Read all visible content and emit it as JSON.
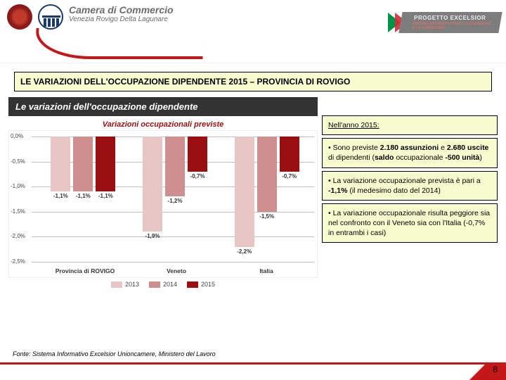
{
  "header": {
    "org_line1": "Camera di Commercio",
    "org_line2": "Venezia Rovigo Delta Lagunare",
    "exc_title": "PROGETTO EXCELSIOR",
    "exc_sub": "SISTEMA INFORMATIVO PER L'OCCUPAZIONE E LA FORMAZIONE"
  },
  "title": "LE VARIAZIONI DELL'OCCUPAZIONE DIPENDENTE 2015 – PROVINCIA DI ROVIGO",
  "chart": {
    "type": "bar",
    "bar_title": "Le variazioni dell'occupazione dipendente",
    "sub_title": "Variazioni occupazionali previste",
    "categories": [
      "Provincia di ROVIGO",
      "Veneto",
      "Italia"
    ],
    "series": [
      {
        "name": "2013",
        "color": "#e9c6c6"
      },
      {
        "name": "2014",
        "color": "#cf8f8f"
      },
      {
        "name": "2015",
        "color": "#9a1010"
      }
    ],
    "values": [
      [
        -1.1,
        -1.1,
        -1.1
      ],
      [
        -1.9,
        -1.2,
        -0.7
      ],
      [
        -2.2,
        -1.5,
        -0.7
      ]
    ],
    "value_labels": [
      [
        "-1,1%",
        "-1,1%",
        "-1,1%"
      ],
      [
        "-1,9%",
        "-1,2%",
        "-0,7%"
      ],
      [
        "-2,2%",
        "-1,5%",
        "-0,7%"
      ]
    ],
    "ylim": [
      -2.5,
      0.0
    ],
    "ytick_step": 0.5,
    "yticks": [
      "0,0%",
      "-0,5%",
      "-1,0%",
      "-1,5%",
      "-2,0%",
      "-2,5%"
    ],
    "grid_color": "#c1bebe",
    "background_color": "#ffffff"
  },
  "sidebar": {
    "lead": "Nell'anno 2015:",
    "points": [
      "Sono previste <b>2.180 assunzioni</b> e <b>2.680 uscite</b> di dipendenti (<b>saldo</b> occupazionale <b>-500 unità</b>)",
      "La variazione occupazionale prevista è pari a <b>-1,1%</b> (il medesimo dato del 2014)",
      "La variazione occupazionale risulta peggiore sia nel confronto con il Veneto sia con l'Italia (-0,7% in entrambi i casi)"
    ]
  },
  "footer": {
    "source": "Fonte: Sistema Informativo Excelsior Unioncamere, Ministero del Lavoro",
    "page": "8"
  },
  "colors": {
    "brand_red": "#c41818",
    "box_bg": "#f7fccf",
    "bar_title_bg": "#333333"
  }
}
